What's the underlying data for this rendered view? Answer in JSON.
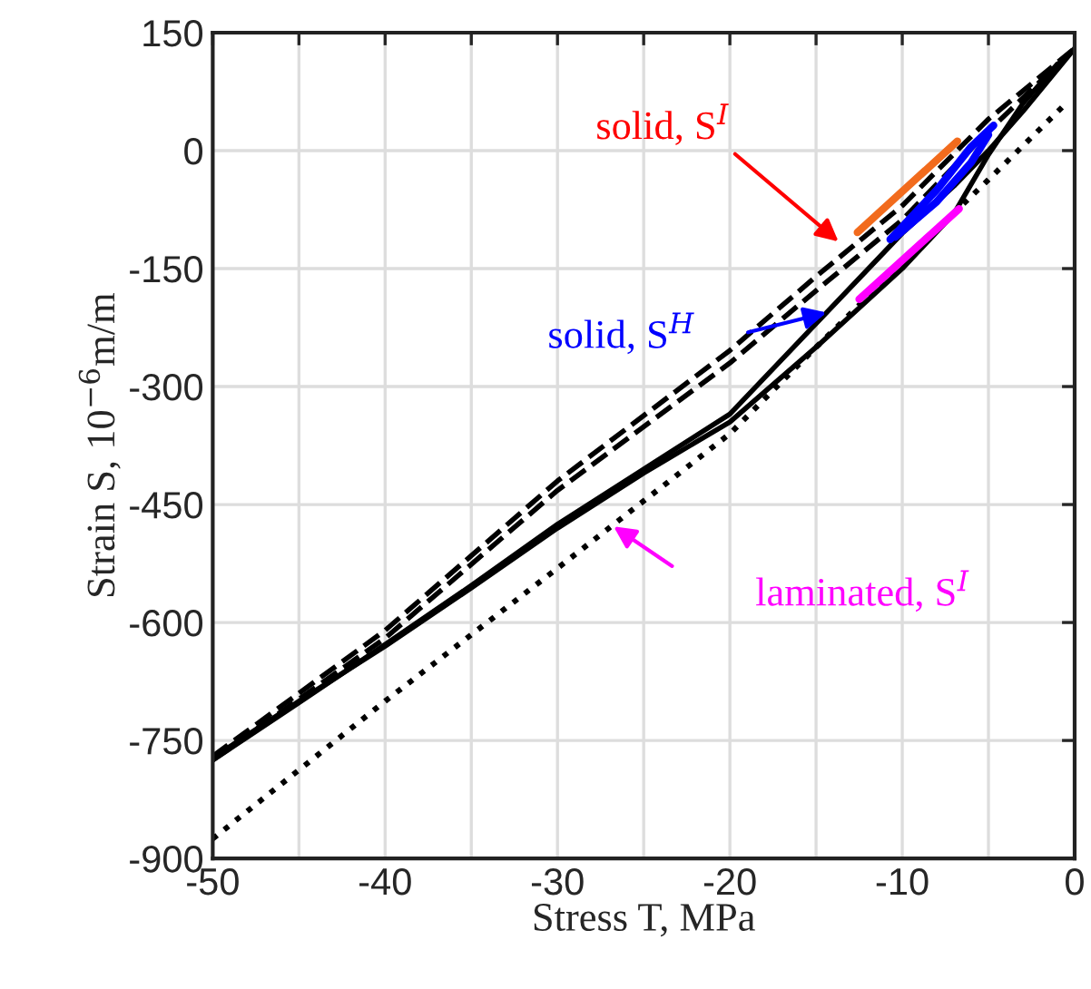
{
  "chart_data": {
    "type": "line",
    "xlabel": "Stress T, MPa",
    "ylabel": "Strain S, 10$^{−6}$m/m",
    "xlim": [
      -50,
      0
    ],
    "ylim": [
      -900,
      150
    ],
    "xticks": [
      -50,
      {
        "value": -45,
        "label": null
      },
      -40,
      {
        "value": -35,
        "label": null
      },
      -30,
      {
        "value": -25,
        "label": null
      },
      -20,
      {
        "value": -15,
        "label": null
      },
      -10,
      {
        "value": -5,
        "label": null
      },
      0
    ],
    "yticks": [
      -900,
      -750,
      -600,
      -450,
      -300,
      -150,
      0,
      150
    ],
    "grid": true,
    "legend": false,
    "series": [
      {
        "color": "#000000",
        "line_style": "solid",
        "x": [
          -50,
          -45,
          -40,
          -35,
          -30,
          -25,
          -20,
          -15,
          -10,
          -7,
          -5,
          -3,
          0
        ],
        "values": [
          -775,
          -702,
          -628,
          -553,
          -475,
          -405,
          -335,
          -220,
          -105,
          -45,
          0,
          50,
          130
        ]
      },
      {
        "color": "#000000",
        "line_style": "solid",
        "x": [
          -50,
          -45,
          -40,
          -35,
          -30,
          -25,
          -20,
          -15,
          -10,
          -7,
          -5,
          -3,
          -1
        ],
        "values": [
          -772,
          -700,
          -630,
          -556,
          -480,
          -410,
          -345,
          -250,
          -150,
          -80,
          -5,
          60,
          110
        ]
      },
      {
        "color": "#000000",
        "line_style": "dashed",
        "x": [
          -50,
          -40,
          -30,
          -20,
          -15,
          -10,
          -5,
          0
        ],
        "values": [
          -770,
          -610,
          -420,
          -254,
          -160,
          -70,
          40,
          130
        ]
      },
      {
        "color": "#000000",
        "line_style": "dashed",
        "x": [
          -50,
          -40,
          -30,
          -20,
          -15,
          -10,
          -5,
          0
        ],
        "values": [
          -775,
          -620,
          -432,
          -270,
          -178,
          -88,
          25,
          130
        ]
      },
      {
        "color": "#000000",
        "line_style": "dotted",
        "x": [
          -50,
          -40,
          -30,
          -20,
          -15,
          -10,
          -5,
          -0.5
        ],
        "values": [
          -875,
          -700,
          -531,
          -360,
          -250,
          -143,
          -37,
          60
        ]
      },
      {
        "color": "#0000ff",
        "line_style": "solid",
        "x": [
          -10.7,
          -8,
          -6,
          -4.7
        ],
        "values": [
          -113,
          -50,
          5,
          32
        ]
      },
      {
        "color": "#0000ff",
        "line_style": "solid",
        "x": [
          -10.4,
          -8,
          -6,
          -5
        ],
        "values": [
          -110,
          -65,
          -15,
          20
        ]
      },
      {
        "color": "#f26b1d",
        "line_style": "solid",
        "x": [
          -12.6,
          -6.8
        ],
        "values": [
          -104,
          12
        ]
      },
      {
        "color": "#ff00ff",
        "line_style": "solid",
        "x": [
          -12.5,
          -6.7
        ],
        "values": [
          -189,
          -74
        ]
      }
    ],
    "annotations": [
      "solid, S$^{I}$",
      "solid, S$^{H}$",
      "laminated, S$^{I}$"
    ]
  }
}
